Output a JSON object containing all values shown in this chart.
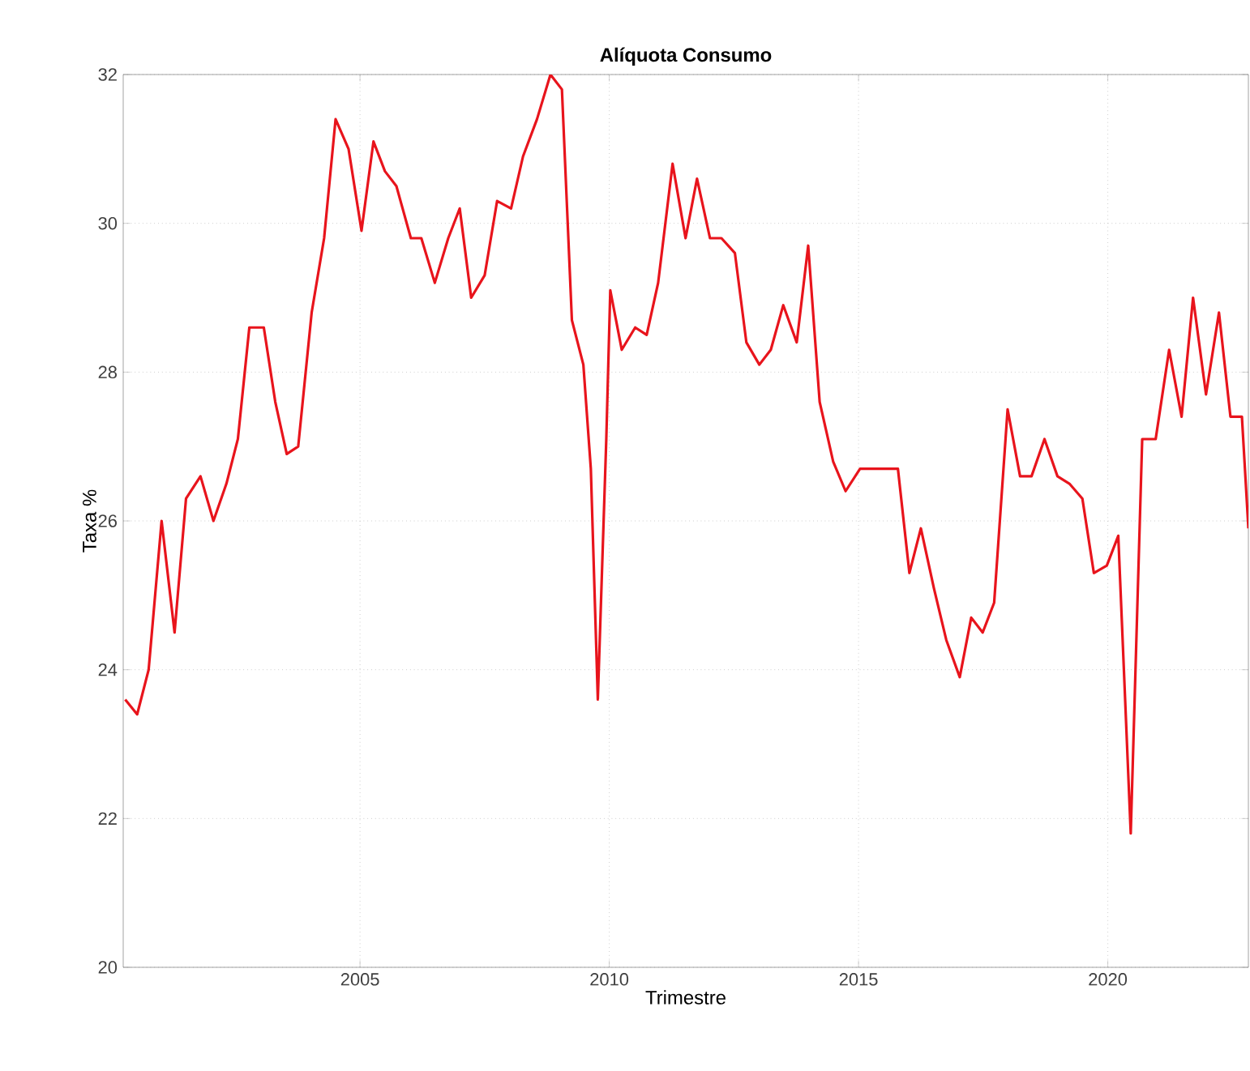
{
  "chart_data": {
    "type": "line",
    "title": "Alíquota Consumo",
    "xlabel": "Trimestre",
    "ylabel": "Taxa %",
    "xlim": [
      2000.25,
      2022.82
    ],
    "ylim": [
      20,
      32
    ],
    "xticks": [
      2005,
      2010,
      2015,
      2020
    ],
    "yticks": [
      20,
      22,
      24,
      26,
      28,
      30,
      32
    ],
    "grid": true,
    "line_style": "solid",
    "series": [
      {
        "color": "#e8141c",
        "x": [
          2000.29,
          2000.53,
          2000.76,
          2001.02,
          2001.28,
          2001.51,
          2001.8,
          2002.06,
          2002.32,
          2002.55,
          2002.78,
          2003.07,
          2003.3,
          2003.53,
          2003.76,
          2004.03,
          2004.28,
          2004.51,
          2004.77,
          2005.03,
          2005.27,
          2005.5,
          2005.73,
          2006.02,
          2006.23,
          2006.5,
          2006.77,
          2007.0,
          2007.23,
          2007.5,
          2007.75,
          2008.03,
          2008.27,
          2008.55,
          2008.82,
          2009.05,
          2009.25,
          2009.48,
          2009.63,
          2009.77,
          2009.94,
          2010.02,
          2010.25,
          2010.52,
          2010.75,
          2010.98,
          2011.27,
          2011.53,
          2011.76,
          2012.02,
          2012.25,
          2012.52,
          2012.75,
          2013.01,
          2013.24,
          2013.49,
          2013.76,
          2013.99,
          2014.22,
          2014.49,
          2014.74,
          2015.03,
          2015.29,
          2015.55,
          2015.79,
          2016.02,
          2016.25,
          2016.51,
          2016.76,
          2017.03,
          2017.26,
          2017.49,
          2017.72,
          2017.99,
          2018.24,
          2018.47,
          2018.73,
          2018.99,
          2019.23,
          2019.49,
          2019.72,
          2019.98,
          2020.21,
          2020.46,
          2020.69,
          2020.96,
          2021.23,
          2021.48,
          2021.71,
          2021.97,
          2022.23,
          2022.46,
          2022.69,
          2022.82
        ],
        "values": [
          23.6,
          23.4,
          24.0,
          26.0,
          24.5,
          26.3,
          26.6,
          26.0,
          26.5,
          27.1,
          28.6,
          28.6,
          27.6,
          26.9,
          27.0,
          28.8,
          29.8,
          31.4,
          31.0,
          29.9,
          31.1,
          30.7,
          30.5,
          29.8,
          29.8,
          29.2,
          29.8,
          30.2,
          29.0,
          29.3,
          30.3,
          30.2,
          30.9,
          31.4,
          32.0,
          31.8,
          28.7,
          28.1,
          26.7,
          23.6,
          27.1,
          29.1,
          28.3,
          28.6,
          28.5,
          29.2,
          30.8,
          29.8,
          30.6,
          29.8,
          29.8,
          29.6,
          28.4,
          28.1,
          28.3,
          28.9,
          28.4,
          29.7,
          27.6,
          26.8,
          26.4,
          26.7,
          26.7,
          26.7,
          26.7,
          25.3,
          25.9,
          25.1,
          24.4,
          23.9,
          24.7,
          24.5,
          24.9,
          27.5,
          26.6,
          26.6,
          27.1,
          26.6,
          26.5,
          26.3,
          25.3,
          25.4,
          25.8,
          21.8,
          27.1,
          27.1,
          28.3,
          27.4,
          29.0,
          27.7,
          28.8,
          27.4,
          27.4,
          25.9
        ]
      }
    ]
  }
}
